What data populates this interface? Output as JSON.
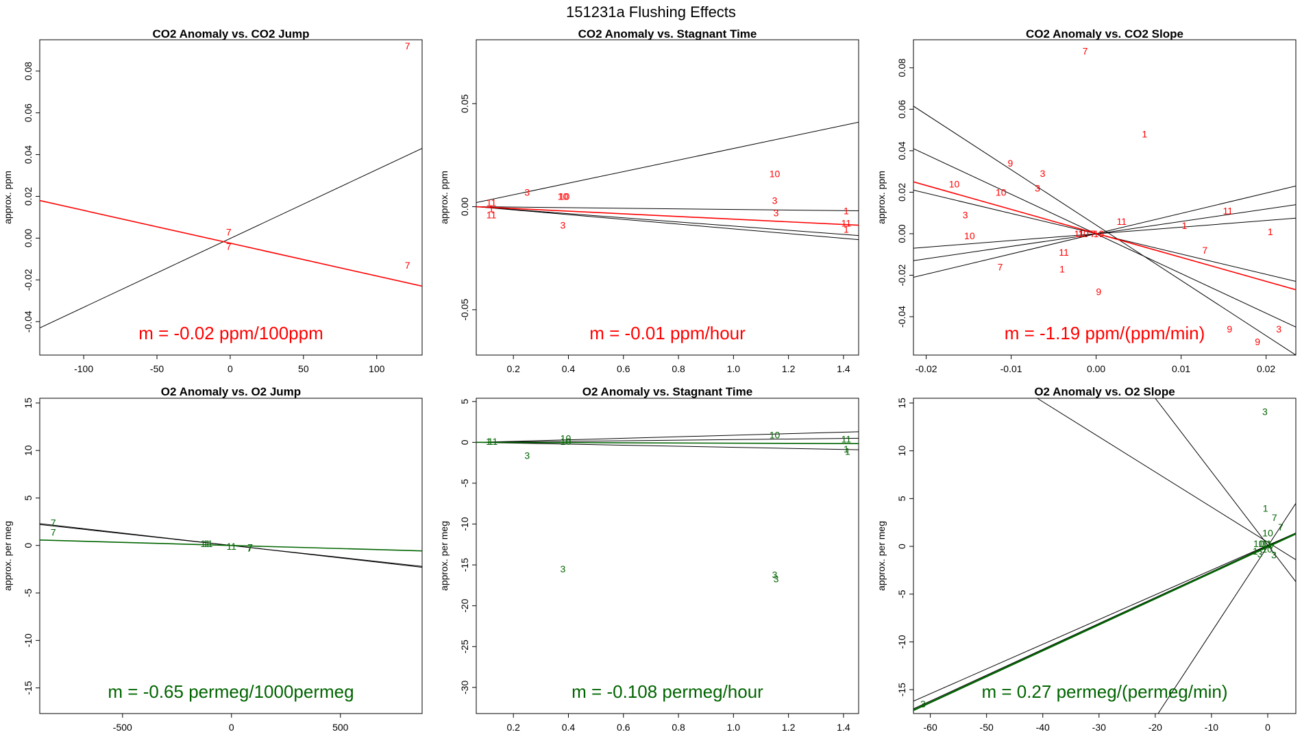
{
  "figure_title": "151231a   Flushing Effects",
  "colors": {
    "co2": "#ff0000",
    "o2": "#006400",
    "reference": "#000000"
  },
  "chart_data": [
    {
      "id": "p1",
      "type": "scatter",
      "variant": "co2",
      "title": "CO2 Anomaly vs. CO2 Jump",
      "xlabel": "",
      "ylabel": "approx. ppm",
      "xlim": [
        -130,
        131
      ],
      "ylim": [
        -0.056,
        0.095
      ],
      "xticks": [
        -100,
        -50,
        0,
        50,
        100
      ],
      "xtick_labels": [
        "-100",
        "-50",
        "0",
        "50",
        "100"
      ],
      "yticks": [
        -0.04,
        -0.02,
        0.0,
        0.02,
        0.04,
        0.06,
        0.08
      ],
      "ytick_labels": [
        "-0.04",
        "-0.02",
        "0.00",
        "0.02",
        "0.04",
        "0.06",
        "0.08"
      ],
      "slope_label": "m = -0.02 ppm/100ppm",
      "points": [
        {
          "x": 121,
          "y": 0.092,
          "label": "7"
        },
        {
          "x": -1,
          "y": 0.003,
          "label": "7"
        },
        {
          "x": -1,
          "y": -0.004,
          "label": "7"
        },
        {
          "x": 121,
          "y": -0.013,
          "label": "7"
        }
      ],
      "lines": [
        {
          "x1": -130,
          "y1": -0.043,
          "x2": 131,
          "y2": 0.043,
          "fit": false
        },
        {
          "x1": -130,
          "y1": 0.018,
          "x2": 131,
          "y2": -0.023,
          "fit": true
        }
      ]
    },
    {
      "id": "p2",
      "type": "scatter",
      "variant": "co2",
      "title": "CO2 Anomaly vs. Stagnant Time",
      "xlabel": "",
      "ylabel": "approx. ppm",
      "xlim": [
        0.065,
        1.455
      ],
      "ylim": [
        -0.072,
        0.081
      ],
      "xticks": [
        0.2,
        0.4,
        0.6,
        0.8,
        1.0,
        1.2,
        1.4
      ],
      "xtick_labels": [
        "0.2",
        "0.4",
        "0.6",
        "0.8",
        "1.0",
        "1.2",
        "1.4"
      ],
      "yticks": [
        -0.05,
        0.0,
        0.05
      ],
      "ytick_labels": [
        "-0.05",
        "0.00",
        "0.05"
      ],
      "slope_label": "m = -0.01 ppm/hour",
      "points": [
        {
          "x": 0.12,
          "y": 0.002,
          "label": "11"
        },
        {
          "x": 0.12,
          "y": -0.001,
          "label": "1"
        },
        {
          "x": 0.12,
          "y": -0.004,
          "label": "11"
        },
        {
          "x": 0.25,
          "y": 0.007,
          "label": "3"
        },
        {
          "x": 0.38,
          "y": 0.005,
          "label": "10"
        },
        {
          "x": 0.385,
          "y": 0.005,
          "label": "10"
        },
        {
          "x": 0.38,
          "y": -0.009,
          "label": "3"
        },
        {
          "x": 1.15,
          "y": 0.016,
          "label": "10"
        },
        {
          "x": 1.15,
          "y": 0.003,
          "label": "3"
        },
        {
          "x": 1.155,
          "y": -0.003,
          "label": "3"
        },
        {
          "x": 1.41,
          "y": -0.002,
          "label": "1"
        },
        {
          "x": 1.41,
          "y": -0.008,
          "label": "11"
        },
        {
          "x": 1.41,
          "y": -0.011,
          "label": "1"
        }
      ],
      "lines": [
        {
          "x1": 0.065,
          "y1": 0.002,
          "x2": 1.455,
          "y2": 0.041,
          "fit": false
        },
        {
          "x1": 0.065,
          "y1": 0.0,
          "x2": 1.455,
          "y2": -0.002,
          "fit": false
        },
        {
          "x1": 0.065,
          "y1": 0.0,
          "x2": 1.455,
          "y2": -0.014,
          "fit": false
        },
        {
          "x1": 0.065,
          "y1": 0.0,
          "x2": 1.455,
          "y2": -0.016,
          "fit": false
        },
        {
          "x1": 0.065,
          "y1": 0.0,
          "x2": 1.455,
          "y2": -0.009,
          "fit": true
        }
      ]
    },
    {
      "id": "p3",
      "type": "scatter",
      "variant": "co2",
      "title": "CO2 Anomaly vs. CO2 Slope",
      "xlabel": "",
      "ylabel": "approx. ppm",
      "xlim": [
        -0.0215,
        0.0235
      ],
      "ylim": [
        -0.0585,
        0.0935
      ],
      "xticks": [
        -0.02,
        -0.01,
        0.0,
        0.01,
        0.02
      ],
      "xtick_labels": [
        "-0.02",
        "-0.01",
        "0.00",
        "0.01",
        "0.02"
      ],
      "yticks": [
        -0.04,
        -0.02,
        0.0,
        0.02,
        0.04,
        0.06,
        0.08
      ],
      "ytick_labels": [
        "-0.04",
        "-0.02",
        "0.00",
        "0.02",
        "0.04",
        "0.06",
        "0.08"
      ],
      "slope_label": "m = -1.19 ppm/(ppm/min)",
      "points": [
        {
          "x": -0.0013,
          "y": 0.088,
          "label": "7"
        },
        {
          "x": 0.0057,
          "y": 0.048,
          "label": "1"
        },
        {
          "x": -0.0101,
          "y": 0.034,
          "label": "9"
        },
        {
          "x": -0.0063,
          "y": 0.029,
          "label": "3"
        },
        {
          "x": -0.0167,
          "y": 0.024,
          "label": "10"
        },
        {
          "x": -0.0069,
          "y": 0.022,
          "label": "3"
        },
        {
          "x": -0.0112,
          "y": 0.02,
          "label": "10"
        },
        {
          "x": -0.0154,
          "y": 0.009,
          "label": "3"
        },
        {
          "x": 0.003,
          "y": 0.006,
          "label": "11"
        },
        {
          "x": 0.0104,
          "y": 0.004,
          "label": "1"
        },
        {
          "x": 0.0155,
          "y": 0.011,
          "label": "11"
        },
        {
          "x": 0.0205,
          "y": 0.001,
          "label": "1"
        },
        {
          "x": -0.0149,
          "y": -0.001,
          "label": "10"
        },
        {
          "x": -0.002,
          "y": 0.0,
          "label": "11"
        },
        {
          "x": -0.0015,
          "y": 0.0,
          "label": "10"
        },
        {
          "x": 0.0003,
          "y": 0.0,
          "label": "10"
        },
        {
          "x": -0.0004,
          "y": 0.0,
          "label": "7"
        },
        {
          "x": -0.0038,
          "y": -0.009,
          "label": "11"
        },
        {
          "x": 0.0128,
          "y": -0.008,
          "label": "7"
        },
        {
          "x": -0.0113,
          "y": -0.016,
          "label": "7"
        },
        {
          "x": -0.004,
          "y": -0.017,
          "label": "1"
        },
        {
          "x": 0.0003,
          "y": -0.028,
          "label": "9"
        },
        {
          "x": 0.0157,
          "y": -0.046,
          "label": "9"
        },
        {
          "x": 0.019,
          "y": -0.052,
          "label": "9"
        },
        {
          "x": 0.0215,
          "y": -0.046,
          "label": "3"
        }
      ],
      "lines": [
        {
          "x1": -0.0215,
          "y1": 0.0615,
          "x2": 0.0235,
          "y2": -0.0585,
          "fit": false
        },
        {
          "x1": -0.0215,
          "y1": 0.041,
          "x2": 0.0235,
          "y2": -0.045,
          "fit": false
        },
        {
          "x1": -0.0215,
          "y1": 0.021,
          "x2": 0.0235,
          "y2": -0.023,
          "fit": false
        },
        {
          "x1": -0.0215,
          "y1": -0.007,
          "x2": 0.0235,
          "y2": 0.0075,
          "fit": false
        },
        {
          "x1": -0.0215,
          "y1": -0.013,
          "x2": 0.0235,
          "y2": 0.014,
          "fit": false
        },
        {
          "x1": -0.0215,
          "y1": -0.021,
          "x2": 0.0235,
          "y2": 0.023,
          "fit": false
        },
        {
          "x1": -0.0215,
          "y1": 0.025,
          "x2": 0.0235,
          "y2": -0.027,
          "fit": true
        }
      ]
    },
    {
      "id": "p4",
      "type": "scatter",
      "variant": "o2",
      "title": "O2 Anomaly vs. O2 Jump",
      "xlabel": "",
      "ylabel": "approx. per meg",
      "xlim": [
        -880,
        875
      ],
      "ylim": [
        -17.7,
        15.5
      ],
      "xticks": [
        -500,
        0,
        500
      ],
      "xtick_labels": [
        "-500",
        "0",
        "500"
      ],
      "yticks": [
        -15,
        -10,
        -5,
        0,
        5,
        10,
        15
      ],
      "ytick_labels": [
        "-15",
        "-10",
        "-5",
        "0",
        "5",
        "10",
        "15"
      ],
      "slope_label": "m = -0.65 permeg/1000permeg",
      "points": [
        {
          "x": -818,
          "y": 2.4,
          "label": "7"
        },
        {
          "x": -818,
          "y": 1.4,
          "label": "7"
        },
        {
          "x": -120,
          "y": 0.2,
          "label": "11"
        },
        {
          "x": -108,
          "y": 0.2,
          "label": "11"
        },
        {
          "x": 0,
          "y": -0.1,
          "label": "11"
        },
        {
          "x": 82,
          "y": -0.3,
          "label": "7"
        },
        {
          "x": 86,
          "y": -0.2,
          "label": "7"
        }
      ],
      "lines": [
        {
          "x1": -880,
          "y1": 2.3,
          "x2": 875,
          "y2": -2.3,
          "fit": false
        },
        {
          "x1": -880,
          "y1": 2.2,
          "x2": 875,
          "y2": -2.2,
          "fit": false
        },
        {
          "x1": -880,
          "y1": 0.57,
          "x2": 875,
          "y2": -0.57,
          "fit": true
        }
      ]
    },
    {
      "id": "p5",
      "type": "scatter",
      "variant": "o2",
      "title": "O2 Anomaly vs. Stagnant Time",
      "xlabel": "",
      "ylabel": "approx. per meg",
      "xlim": [
        0.065,
        1.455
      ],
      "ylim": [
        -33.2,
        5.4
      ],
      "xticks": [
        0.2,
        0.4,
        0.6,
        0.8,
        1.0,
        1.2,
        1.4
      ],
      "xtick_labels": [
        "0.2",
        "0.4",
        "0.6",
        "0.8",
        "1.0",
        "1.2",
        "1.4"
      ],
      "yticks": [
        -30,
        -25,
        -20,
        -15,
        -10,
        -5,
        0,
        5
      ],
      "ytick_labels": [
        "-30",
        "-25",
        "-20",
        "-15",
        "-10",
        "-5",
        "0",
        "5"
      ],
      "slope_label": "m = -0.108 permeg/hour",
      "points": [
        {
          "x": 0.11,
          "y": 0.1,
          "label": "1"
        },
        {
          "x": 0.125,
          "y": 0.1,
          "label": "11"
        },
        {
          "x": 0.25,
          "y": -1.6,
          "label": "3"
        },
        {
          "x": 0.39,
          "y": 0.5,
          "label": "10"
        },
        {
          "x": 0.39,
          "y": 0.1,
          "label": "10"
        },
        {
          "x": 0.38,
          "y": -15.5,
          "label": "3"
        },
        {
          "x": 1.15,
          "y": 0.9,
          "label": "10"
        },
        {
          "x": 1.15,
          "y": -16.2,
          "label": "3"
        },
        {
          "x": 1.155,
          "y": -16.7,
          "label": "3"
        },
        {
          "x": 1.41,
          "y": 0.4,
          "label": "11"
        },
        {
          "x": 1.41,
          "y": -0.8,
          "label": "1"
        },
        {
          "x": 1.415,
          "y": -1.1,
          "label": "1"
        }
      ],
      "lines": [
        {
          "x1": 0.065,
          "y1": 0.0,
          "x2": 1.455,
          "y2": 1.3,
          "fit": false
        },
        {
          "x1": 0.065,
          "y1": 0.0,
          "x2": 1.455,
          "y2": 0.5,
          "fit": false
        },
        {
          "x1": 0.065,
          "y1": 0.0,
          "x2": 1.455,
          "y2": -0.9,
          "fit": false
        },
        {
          "x1": 0.065,
          "y1": 0.0,
          "x2": 1.455,
          "y2": -0.15,
          "fit": true
        }
      ]
    },
    {
      "id": "p6",
      "type": "scatter",
      "variant": "o2",
      "title": "O2 Anomaly vs. O2 Slope",
      "xlabel": "",
      "ylabel": "approx. per meg",
      "xlim": [
        -63,
        5
      ],
      "ylim": [
        -17.5,
        15.5
      ],
      "xticks": [
        -60,
        -50,
        -40,
        -30,
        -20,
        -10,
        0
      ],
      "xtick_labels": [
        "-60",
        "-50",
        "-40",
        "-30",
        "-20",
        "-10",
        "0"
      ],
      "yticks": [
        -15,
        -10,
        -5,
        0,
        5,
        10,
        15
      ],
      "ytick_labels": [
        "-15",
        "-10",
        "-5",
        "0",
        "5",
        "10",
        "15"
      ],
      "slope_label": "m = 0.27 permeg/(permeg/min)",
      "points": [
        {
          "x": -0.5,
          "y": 14.1,
          "label": "3"
        },
        {
          "x": -0.4,
          "y": 4.0,
          "label": "1"
        },
        {
          "x": 1.2,
          "y": 3.0,
          "label": "7"
        },
        {
          "x": 2.3,
          "y": 2.0,
          "label": "7"
        },
        {
          "x": 0.0,
          "y": 1.4,
          "label": "10"
        },
        {
          "x": -1.6,
          "y": 0.3,
          "label": "10"
        },
        {
          "x": -0.8,
          "y": 0.3,
          "label": "11"
        },
        {
          "x": -0.2,
          "y": 0.3,
          "label": "11"
        },
        {
          "x": 0.4,
          "y": 0.2,
          "label": "1"
        },
        {
          "x": 0.7,
          "y": -0.1,
          "label": "7"
        },
        {
          "x": -2.2,
          "y": -0.5,
          "label": "1"
        },
        {
          "x": -1.4,
          "y": -0.8,
          "label": "3"
        },
        {
          "x": -0.1,
          "y": -0.3,
          "label": "10"
        },
        {
          "x": 1.1,
          "y": -0.9,
          "label": "3"
        },
        {
          "x": -61.3,
          "y": -16.5,
          "label": "3"
        }
      ],
      "lines": [
        {
          "x1": -63,
          "y1": -16.2,
          "x2": 5,
          "y2": 1.4,
          "fit": false
        },
        {
          "x1": -63,
          "y1": -17.0,
          "x2": 5,
          "y2": 1.4,
          "fit": false
        },
        {
          "x1": -41,
          "y1": 15.5,
          "x2": 5,
          "y2": -1.4,
          "fit": false
        },
        {
          "x1": -20,
          "y1": 15.5,
          "x2": 5,
          "y2": -3.7,
          "fit": false
        },
        {
          "x1": -19.5,
          "y1": -17.5,
          "x2": 5,
          "y2": 4.5,
          "fit": false
        },
        {
          "x1": -63,
          "y1": -17.15,
          "x2": 5,
          "y2": 1.32,
          "fit": true
        }
      ]
    }
  ]
}
